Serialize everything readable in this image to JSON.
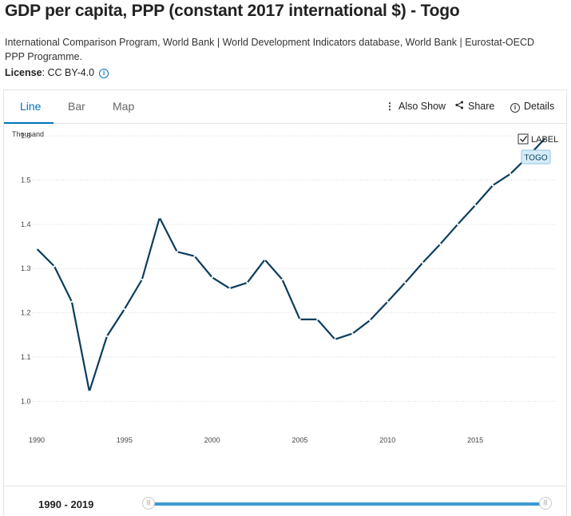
{
  "header": {
    "title": "GDP per capita, PPP (constant 2017 international $) - Togo",
    "source": "International Comparison Program, World Bank | World Development Indicators database, World Bank | Eurostat-OECD PPP Programme.",
    "license_label": "License",
    "license_value": ": CC BY-4.0"
  },
  "tabs": [
    {
      "label": "Line",
      "active": true
    },
    {
      "label": "Bar",
      "active": false
    },
    {
      "label": "Map",
      "active": false
    }
  ],
  "actions": {
    "also_show": "Also Show",
    "share": "Share",
    "details": "Details"
  },
  "label_toggle": {
    "label": "LABEL",
    "checked": true
  },
  "colors": {
    "line": "#0b3d5c",
    "accent": "#0071bc",
    "series_label_bg": "#d5ecf8"
  },
  "chart_data": {
    "type": "line",
    "title": "",
    "xlabel": "",
    "ylabel": "",
    "y_unit_label": "Thousand",
    "x": [
      1990,
      1991,
      1992,
      1993,
      1994,
      1995,
      1996,
      1997,
      1998,
      1999,
      2000,
      2001,
      2002,
      2003,
      2004,
      2005,
      2006,
      2007,
      2008,
      2009,
      2010,
      2011,
      2012,
      2013,
      2014,
      2015,
      2016,
      2017,
      2018,
      2019
    ],
    "series": [
      {
        "name": "TOGO",
        "values": [
          1.345,
          1.305,
          1.225,
          1.022,
          1.147,
          1.208,
          1.275,
          1.415,
          1.338,
          1.328,
          1.28,
          1.255,
          1.268,
          1.32,
          1.275,
          1.185,
          1.185,
          1.14,
          1.153,
          1.183,
          1.225,
          1.268,
          1.313,
          1.355,
          1.4,
          1.443,
          1.488,
          1.514,
          1.553,
          1.595
        ]
      }
    ],
    "xlim": [
      1990,
      2019
    ],
    "ylim": [
      0.95,
      1.62
    ],
    "y_ticks": [
      1.0,
      1.1,
      1.2,
      1.3,
      1.4,
      1.5,
      1.6
    ],
    "y_tick_labels": [
      "1.0",
      "1.1",
      "1.2",
      "1.3",
      "1.4",
      "1.5",
      "1.6"
    ],
    "x_ticks": [
      1990,
      1995,
      2000,
      2005,
      2010,
      2015
    ],
    "x_tick_labels": [
      "1990",
      "1995",
      "2000",
      "2005",
      "2010",
      "2015"
    ],
    "grid": "horizontal-dotted"
  },
  "range": {
    "label": "1990 - 2019"
  }
}
